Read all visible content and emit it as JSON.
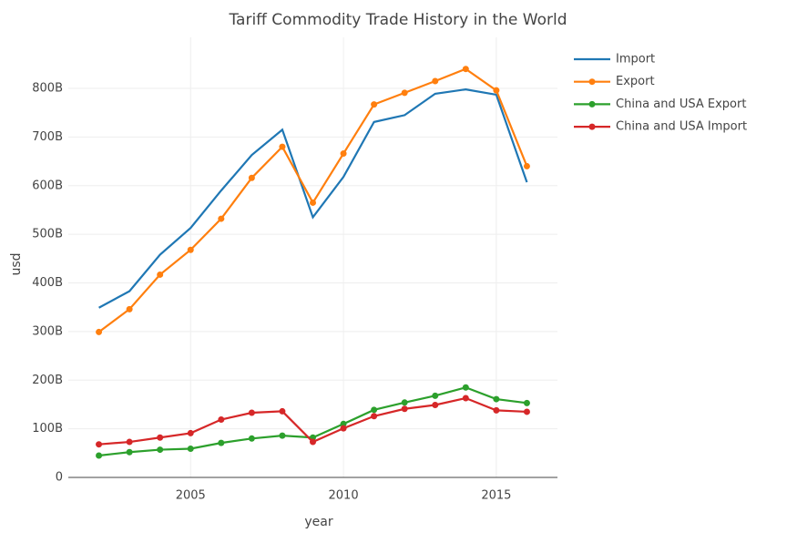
{
  "chart_data": {
    "type": "line",
    "title": "Tariff Commodity Trade History in the World",
    "x_label": "year",
    "y_label": "usd",
    "x": [
      2002,
      2003,
      2004,
      2005,
      2006,
      2007,
      2008,
      2009,
      2010,
      2011,
      2012,
      2013,
      2014,
      2015,
      2016
    ],
    "series": [
      {
        "name": "Import",
        "color": "#1f77b4",
        "mode": "lines",
        "values": [
          349000000000,
          383000000000,
          458000000000,
          513000000000,
          590000000000,
          663000000000,
          715000000000,
          535000000000,
          618000000000,
          731000000000,
          745000000000,
          789000000000,
          798000000000,
          787000000000,
          607000000000
        ]
      },
      {
        "name": "Export",
        "color": "#ff7f0e",
        "mode": "lines+markers",
        "values": [
          299000000000,
          346000000000,
          417000000000,
          468000000000,
          532000000000,
          616000000000,
          680000000000,
          565000000000,
          666000000000,
          767000000000,
          791000000000,
          815000000000,
          840000000000,
          796000000000,
          640000000000
        ]
      },
      {
        "name": "China and USA Export",
        "color": "#2ca02c",
        "mode": "lines+markers",
        "values": [
          45000000000,
          52000000000,
          57000000000,
          59000000000,
          71000000000,
          80000000000,
          86000000000,
          82000000000,
          110000000000,
          139000000000,
          154000000000,
          168000000000,
          185000000000,
          161000000000,
          153000000000
        ]
      },
      {
        "name": "China and USA Import",
        "color": "#d62728",
        "mode": "lines+markers",
        "values": [
          68000000000,
          73000000000,
          82000000000,
          91000000000,
          119000000000,
          133000000000,
          136000000000,
          73000000000,
          101000000000,
          126000000000,
          141000000000,
          149000000000,
          163000000000,
          138000000000,
          135000000000
        ]
      }
    ],
    "xlim": [
      2001,
      2017
    ],
    "xticks": [
      2005,
      2010,
      2015
    ],
    "ylim": [
      0,
      905000000000
    ],
    "yticks": [
      0,
      {
        "value": 100000000000,
        "label": "100B"
      },
      {
        "value": 200000000000,
        "label": "200B"
      },
      {
        "value": 300000000000,
        "label": "300B"
      },
      {
        "value": 400000000000,
        "label": "400B"
      },
      {
        "value": 500000000000,
        "label": "500B"
      },
      {
        "value": 600000000000,
        "label": "600B"
      },
      {
        "value": 700000000000,
        "label": "700B"
      },
      {
        "value": 800000000000,
        "label": "800B"
      }
    ],
    "grid": true,
    "legend": "top-right"
  }
}
